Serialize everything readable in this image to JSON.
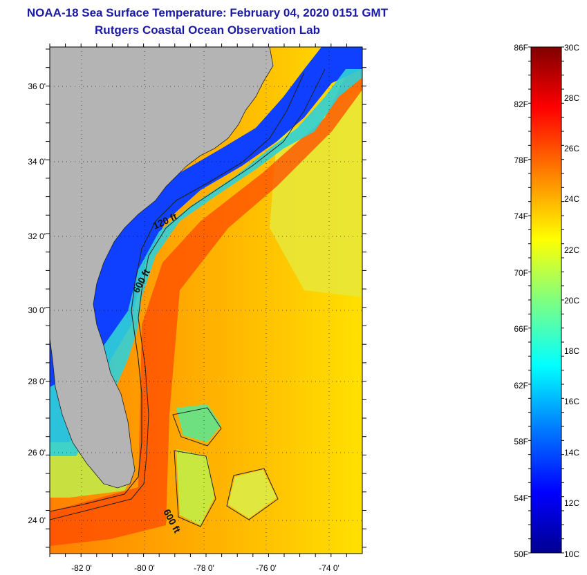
{
  "header": {
    "title": "NOAA-18 Sea Surface Temperature:  February 04, 2020 0151 GMT",
    "subtitle": "Rutgers Coastal Ocean Observation Lab"
  },
  "map": {
    "lat_labels": [
      "36 0'",
      "34 0'",
      "32 0'",
      "30 0'",
      "28 0'",
      "26 0'",
      "24 0'"
    ],
    "lon_labels": [
      "-82 0'",
      "-80 0'",
      "-78 0'",
      "-76 0'",
      "-74 0'"
    ],
    "contour_labels": [
      "120 ft",
      "600 ft",
      "600 ft"
    ],
    "land_color": "#b4b4b4"
  },
  "colorbar": {
    "f_labels": [
      "86F",
      "82F",
      "78F",
      "74F",
      "70F",
      "66F",
      "62F",
      "58F",
      "54F",
      "50F"
    ],
    "c_labels": [
      "30C",
      "28C",
      "26C",
      "24C",
      "22C",
      "20C",
      "18C",
      "16C",
      "14C",
      "12C",
      "10C"
    ],
    "gradient_colors": [
      "#000090",
      "#0000ff",
      "#0080ff",
      "#00ffff",
      "#80ff80",
      "#ffff00",
      "#ff8000",
      "#ff0000",
      "#800000"
    ]
  }
}
